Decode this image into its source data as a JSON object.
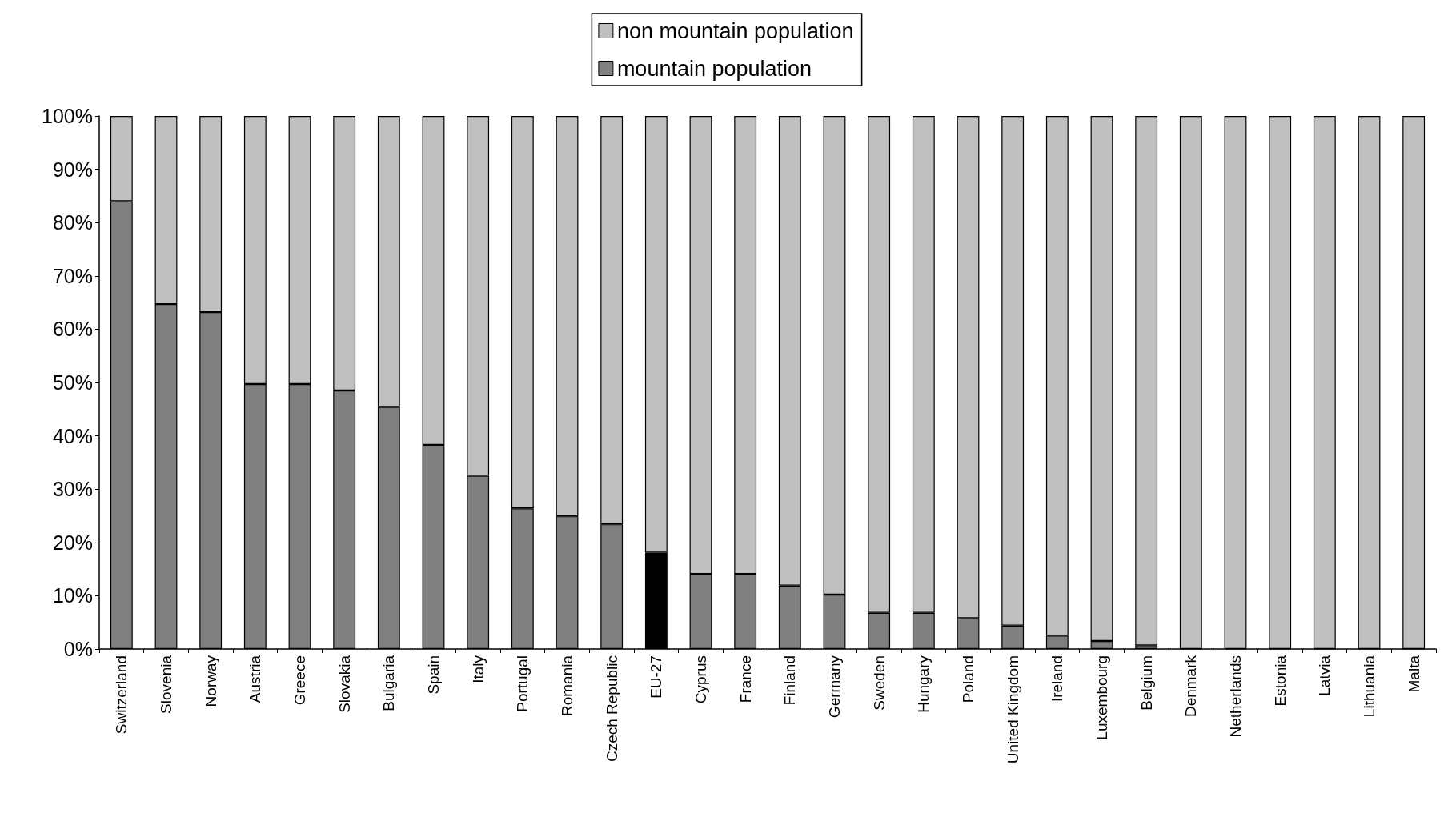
{
  "chart_data": {
    "type": "bar",
    "stacked": true,
    "legend": "top",
    "grid": false,
    "categories": [
      "Switzerland",
      "Slovenia",
      "Norway",
      "Austria",
      "Greece",
      "Slovakia",
      "Bulgaria",
      "Spain",
      "Italy",
      "Portugal",
      "Romania",
      "Czech Republic",
      "EU-27",
      "Cyprus",
      "France",
      "Finland",
      "Germany",
      "Sweden",
      "Hungary",
      "Poland",
      "United Kingdom",
      "Ireland",
      "Luxembourg",
      "Belgium",
      "Denmark",
      "Netherlands",
      "Estonia",
      "Latvia",
      "Lithuania",
      "Malta"
    ],
    "series": [
      {
        "name": "mountain population",
        "color": "#808080",
        "colors": [
          "#808080",
          "#808080",
          "#808080",
          "#808080",
          "#808080",
          "#808080",
          "#808080",
          "#808080",
          "#808080",
          "#808080",
          "#808080",
          "#808080",
          "#000000",
          "#808080",
          "#808080",
          "#808080",
          "#808080",
          "#808080",
          "#808080",
          "#808080",
          "#808080",
          "#808080",
          "#808080",
          "#808080",
          "#808080",
          "#808080",
          "#808080",
          "#808080",
          "#808080",
          "#808080"
        ],
        "values": [
          84,
          64.7,
          63.2,
          49.7,
          49.7,
          48.5,
          45.4,
          38.3,
          32.5,
          26.4,
          24.9,
          23.4,
          18.1,
          14.1,
          14.1,
          11.9,
          10.2,
          6.8,
          6.8,
          5.8,
          4.4,
          2.5,
          1.5,
          0.7,
          0,
          0,
          0,
          0,
          0,
          0
        ]
      },
      {
        "name": "non mountain population",
        "color": "#c0c0c0",
        "values": [
          16,
          35.3,
          36.8,
          50.3,
          50.3,
          51.5,
          54.6,
          61.7,
          67.5,
          73.6,
          75.1,
          76.6,
          81.9,
          85.9,
          85.9,
          88.1,
          89.8,
          93.2,
          93.2,
          94.2,
          95.6,
          97.5,
          98.5,
          99.3,
          100,
          100,
          100,
          100,
          100,
          100
        ]
      }
    ],
    "ylim": [
      0,
      100
    ],
    "yticks": [
      {
        "value": 0,
        "label": "0%"
      },
      {
        "value": 10,
        "label": "10%"
      },
      {
        "value": 20,
        "label": "20%"
      },
      {
        "value": 30,
        "label": "30%"
      },
      {
        "value": 40,
        "label": "40%"
      },
      {
        "value": 50,
        "label": "50%"
      },
      {
        "value": 60,
        "label": "60%"
      },
      {
        "value": 70,
        "label": "70%"
      },
      {
        "value": 80,
        "label": "80%"
      },
      {
        "value": 90,
        "label": "90%"
      },
      {
        "value": 100,
        "label": "100%"
      }
    ]
  }
}
